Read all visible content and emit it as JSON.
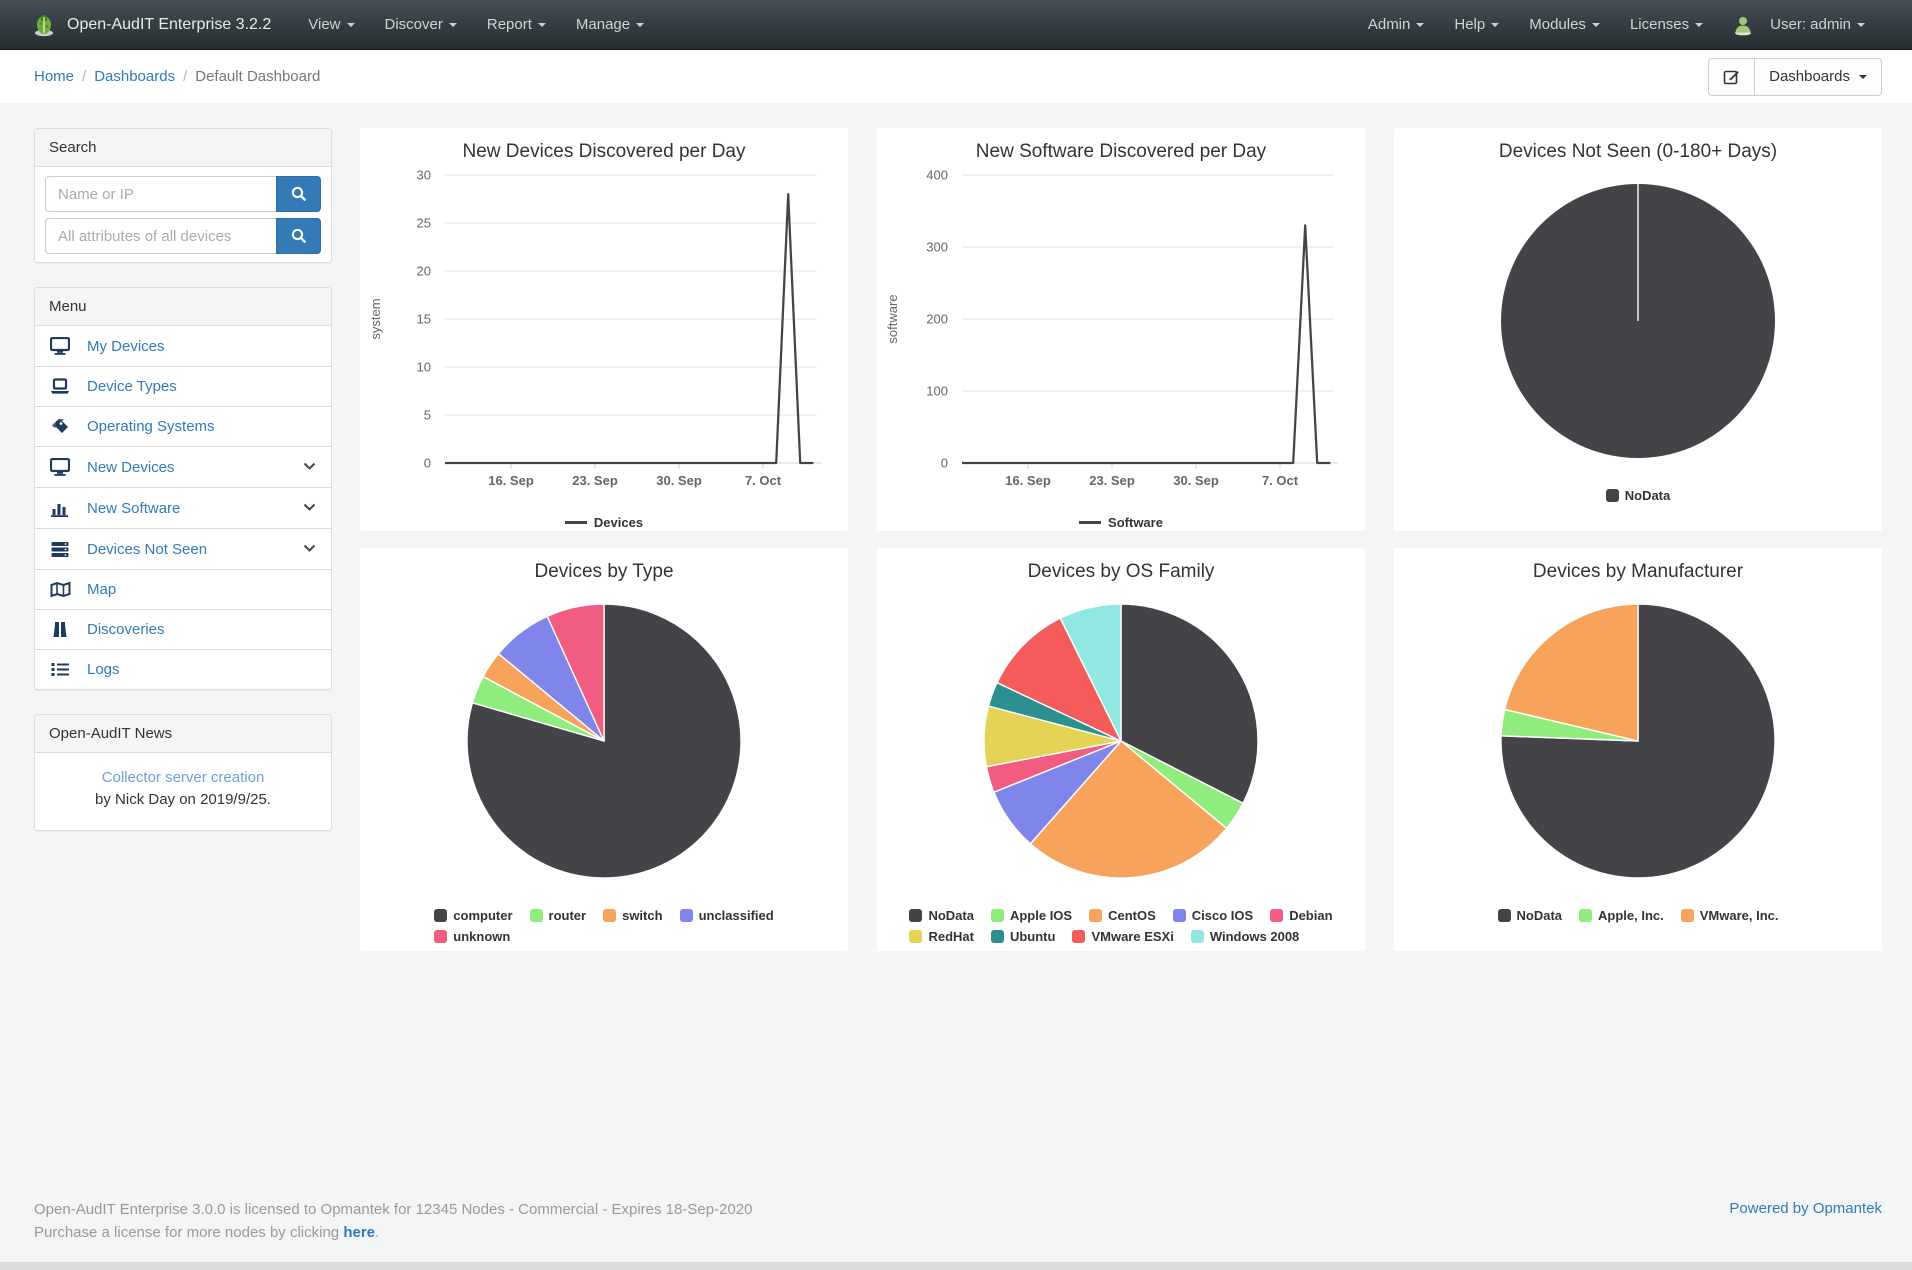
{
  "navbar": {
    "brand": "Open-AudIT Enterprise 3.2.2",
    "left_items": [
      {
        "label": "View"
      },
      {
        "label": "Discover"
      },
      {
        "label": "Report"
      },
      {
        "label": "Manage"
      }
    ],
    "right_items": [
      {
        "label": "Admin"
      },
      {
        "label": "Help"
      },
      {
        "label": "Modules"
      },
      {
        "label": "Licenses"
      }
    ],
    "user_label": "User: admin"
  },
  "breadcrumb": {
    "links": [
      "Home",
      "Dashboards"
    ],
    "separator": "/",
    "current": "Default Dashboard"
  },
  "toolbar": {
    "dashboards_label": "Dashboards"
  },
  "sidebar": {
    "search": {
      "title": "Search",
      "inputs": [
        {
          "placeholder": "Name or IP",
          "value": ""
        },
        {
          "placeholder": "All attributes of all devices",
          "value": ""
        }
      ]
    },
    "menu": {
      "title": "Menu",
      "items": [
        {
          "label": "My Devices"
        },
        {
          "label": "Device Types"
        },
        {
          "label": "Operating Systems"
        },
        {
          "label": "New Devices"
        },
        {
          "label": "New Software"
        },
        {
          "label": "Devices Not Seen"
        },
        {
          "label": "Map"
        },
        {
          "label": "Discoveries"
        },
        {
          "label": "Logs"
        }
      ]
    },
    "news": {
      "title": "Open-AudIT News",
      "link": "Collector server creation",
      "byline": "by Nick Day on 2019/9/25."
    }
  },
  "footer": {
    "line1": "Open-AudIT Enterprise 3.0.0 is licensed to Opmantek for 12345 Nodes - Commercial - Expires 18-Sep-2020",
    "line2_prefix": "Purchase a license for more nodes by clicking ",
    "line2_link": "here",
    "line2_suffix": ".",
    "powered": "Powered by Opmantek"
  },
  "colors": {
    "accent": "#337ab7",
    "series_dark": "#434348"
  },
  "chart_data": [
    {
      "type": "line",
      "title": "New Devices Discovered per Day",
      "ylabel": "system",
      "ylim": [
        0,
        30
      ],
      "y_ticks": [
        0,
        5,
        10,
        15,
        20,
        25,
        30
      ],
      "x_domain": [
        0,
        31
      ],
      "x_ticks": [
        {
          "pos": 5.5,
          "label": "16. Sep"
        },
        {
          "pos": 12.5,
          "label": "23. Sep"
        },
        {
          "pos": 19.5,
          "label": "30. Sep"
        },
        {
          "pos": 26.5,
          "label": "7. Oct"
        }
      ],
      "series": [
        {
          "name": "Devices",
          "color": "#434348",
          "points": [
            [
              0,
              0
            ],
            [
              27.6,
              0
            ],
            [
              28.6,
              28
            ],
            [
              29.6,
              0
            ],
            [
              30.7,
              0
            ]
          ]
        }
      ],
      "grid": true,
      "legend_position": "bottom"
    },
    {
      "type": "line",
      "title": "New Software Discovered per Day",
      "ylabel": "software",
      "ylim": [
        0,
        400
      ],
      "y_ticks": [
        0,
        100,
        200,
        300,
        400
      ],
      "x_domain": [
        0,
        31
      ],
      "x_ticks": [
        {
          "pos": 5.5,
          "label": "16. Sep"
        },
        {
          "pos": 12.5,
          "label": "23. Sep"
        },
        {
          "pos": 19.5,
          "label": "30. Sep"
        },
        {
          "pos": 26.5,
          "label": "7. Oct"
        }
      ],
      "series": [
        {
          "name": "Software",
          "color": "#434348",
          "points": [
            [
              0,
              0
            ],
            [
              27.6,
              0
            ],
            [
              28.6,
              330
            ],
            [
              29.6,
              0
            ],
            [
              30.7,
              0
            ]
          ]
        }
      ],
      "grid": true,
      "legend_position": "bottom"
    },
    {
      "type": "pie",
      "title": "Devices Not Seen (0-180+ Days)",
      "slices": [
        {
          "name": "NoData",
          "value": 100,
          "color": "#434348"
        }
      ],
      "legend_rows": [
        [
          "NoData"
        ]
      ],
      "legend_position": "bottom"
    },
    {
      "type": "pie",
      "title": "Devices by Type",
      "slices": [
        {
          "name": "computer",
          "value": 79.5,
          "color": "#434348"
        },
        {
          "name": "router",
          "value": 3.3,
          "color": "#90ed7d"
        },
        {
          "name": "switch",
          "value": 3.2,
          "color": "#f7a35c"
        },
        {
          "name": "unclassified",
          "value": 7.2,
          "color": "#8085e9"
        },
        {
          "name": "unknown",
          "value": 6.8,
          "color": "#f15c80"
        }
      ],
      "legend_rows": [
        [
          "computer",
          "router",
          "switch",
          "unclassified"
        ],
        [
          "unknown"
        ]
      ],
      "legend_position": "bottom"
    },
    {
      "type": "pie",
      "title": "Devices by OS Family",
      "slices": [
        {
          "name": "NoData",
          "value": 32.5,
          "color": "#434348"
        },
        {
          "name": "Apple IOS",
          "value": 3.5,
          "color": "#90ed7d"
        },
        {
          "name": "CentOS",
          "value": 25.5,
          "color": "#f7a35c"
        },
        {
          "name": "Cisco IOS",
          "value": 7.4,
          "color": "#8085e9"
        },
        {
          "name": "Debian",
          "value": 3.1,
          "color": "#f15c80"
        },
        {
          "name": "RedHat",
          "value": 7.1,
          "color": "#e4d354"
        },
        {
          "name": "Ubuntu",
          "value": 2.9,
          "color": "#2b908f"
        },
        {
          "name": "VMware ESXi",
          "value": 10.7,
          "color": "#f45b5b"
        },
        {
          "name": "Windows 2008",
          "value": 7.3,
          "color": "#91e8e1"
        }
      ],
      "legend_rows": [
        [
          "NoData",
          "Apple IOS",
          "CentOS",
          "Cisco IOS",
          "Debian"
        ],
        [
          "RedHat",
          "Ubuntu",
          "VMware ESXi",
          "Windows 2008"
        ]
      ],
      "legend_position": "bottom"
    },
    {
      "type": "pie",
      "title": "Devices by Manufacturer",
      "slices": [
        {
          "name": "NoData",
          "value": 75.6,
          "color": "#434348"
        },
        {
          "name": "Apple, Inc.",
          "value": 3.1,
          "color": "#90ed7d"
        },
        {
          "name": "VMware, Inc.",
          "value": 21.3,
          "color": "#f7a35c"
        }
      ],
      "legend_rows": [
        [
          "NoData",
          "Apple, Inc.",
          "VMware, Inc."
        ]
      ],
      "legend_position": "bottom"
    }
  ]
}
